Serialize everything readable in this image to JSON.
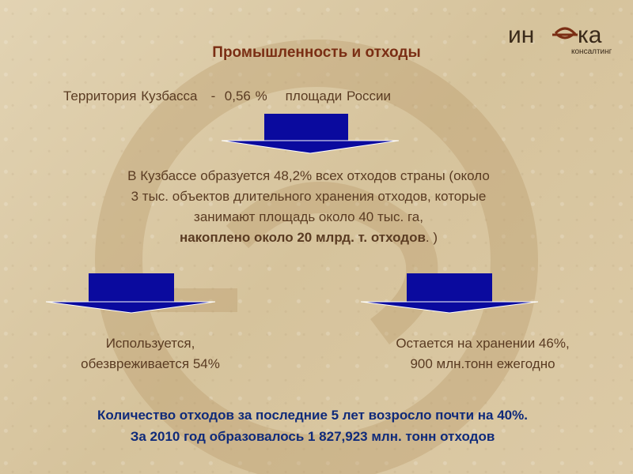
{
  "slide": {
    "title": "Промышленность и отходы",
    "territory": {
      "part1": "Территория Кузбасса",
      "dash": "-",
      "value": "0,56 %",
      "part2": "площади России"
    },
    "main": {
      "line1": "В Кузбассе образуется 48,2% всех отходов страны (около",
      "line2": "3 тыс. объектов длительного хранения отходов, которые",
      "line3": "занимают площадь около 40 тыс. га,",
      "line4_bold": "накоплено около 20 млрд. т. отходов",
      "line4_tail": ". )"
    },
    "left_branch": {
      "line1": "Используется,",
      "line2": "обезвреживается  54%"
    },
    "right_branch": {
      "line1": "Остается на хранении 46%,",
      "line2": "900 млн.тонн ежегодно"
    },
    "bottom": {
      "line1": "Количество отходов за последние 5 лет возросло почти на 40%.",
      "line2": "За 2010 год образовалось 1 827,923 млн. тонн отходов"
    }
  },
  "logo": {
    "text_left": "ин",
    "text_right": "ка",
    "subtitle": "консалтинг"
  },
  "colors": {
    "background": "#dccba8",
    "text": "#5a3b22",
    "title": "#7a2e14",
    "arrow": "#0a0a9e",
    "bottom_text": "#0f2a7a"
  }
}
